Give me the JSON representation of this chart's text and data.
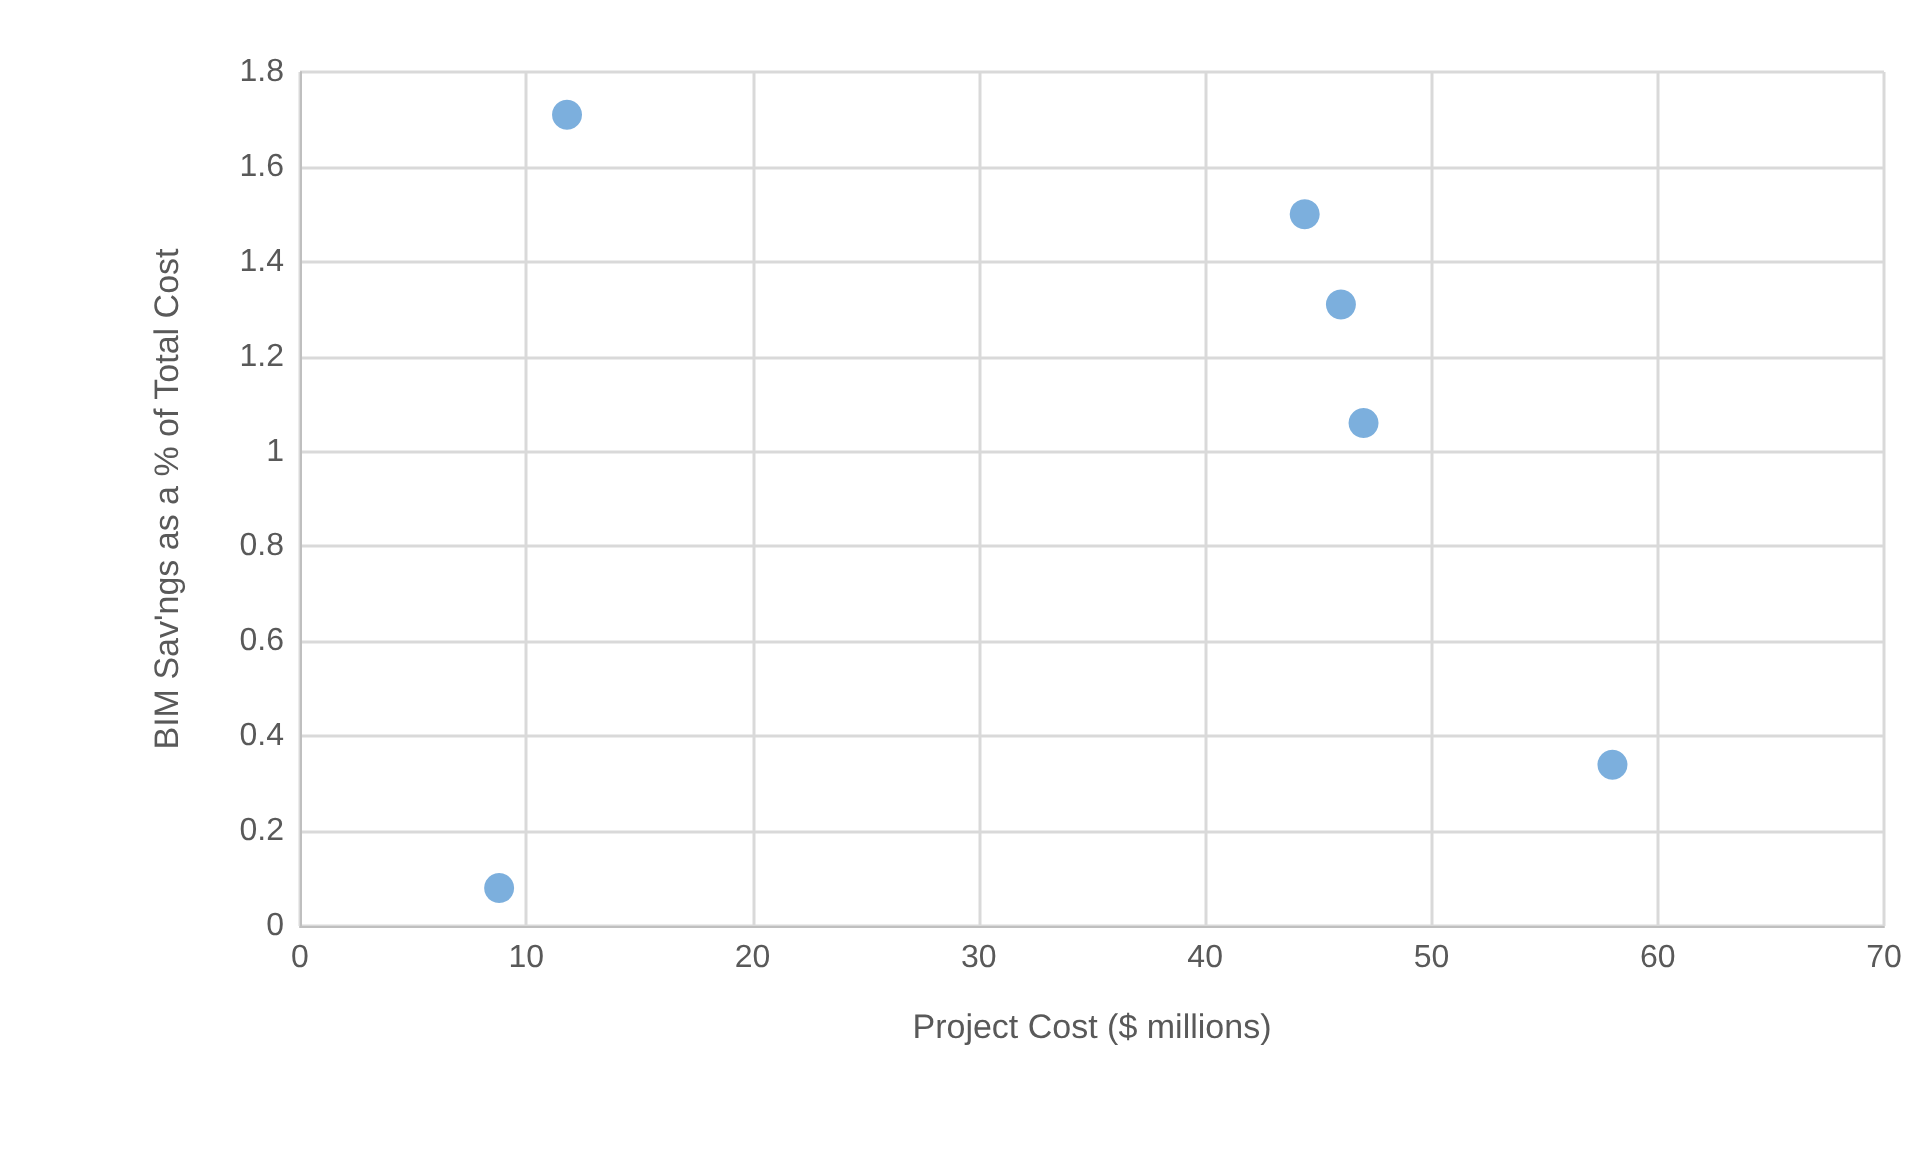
{
  "chart_data": {
    "type": "scatter",
    "xlabel": "Project Cost ($ millions)",
    "ylabel": "BIM Sav'ngs as a % of Total Cost",
    "x": [
      11.8,
      8.8,
      44.4,
      46.0,
      47.0,
      58.0
    ],
    "series": [
      {
        "color": "#5b9bd5",
        "values": [
          1.71,
          0.08,
          1.5,
          1.31,
          1.06,
          0.34
        ]
      }
    ],
    "xlim": [
      0,
      70
    ],
    "xticks": [
      0,
      10,
      20,
      30,
      40,
      50,
      60,
      70
    ],
    "ylim": [
      0,
      1.8
    ],
    "yticks": [
      0,
      0.2,
      0.4,
      0.6,
      0.8,
      1,
      1.2,
      1.4,
      1.6,
      1.8
    ],
    "grid": true,
    "marker": "circle"
  }
}
